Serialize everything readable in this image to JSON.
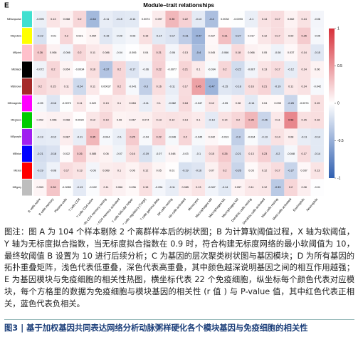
{
  "panel_label": "E",
  "chart_data": {
    "type": "heatmap",
    "title": "Module–trait relationships",
    "x": [
      "B cells naive",
      "B cells memory",
      "Plasma cells",
      "T cells CD8",
      "T cells CD4 naive",
      "T cells CD4 memory resting",
      "T cells CD4 memory activated",
      "T cells follicular helper",
      "T cells regulatory (Tregs)",
      "T cells gamma delta",
      "NK cells resting",
      "NK cells activated",
      "Monocytes",
      "Macrophages M0",
      "Macrophages M1",
      "Macrophages M2",
      "Dendritic cells resting",
      "Dendritic cells activated",
      "Mast cells resting",
      "Mast cells activated",
      "Eosinophils",
      "Neutrophils"
    ],
    "y": [
      "MEturquoise",
      "MEyellow",
      "MEpink",
      "MEblack",
      "MEbrown",
      "MEmagenta",
      "MEgreen",
      "MEpurple",
      "MEblue",
      "MEred",
      "MEgrey"
    ],
    "row_colors": [
      "#40e0d0",
      "#ffff00",
      "#ffc0cb",
      "#000000",
      "#a52a2a",
      "#ff00ff",
      "#00cc00",
      "#a020f0",
      "#0000ff",
      "#ff0000",
      "#bebebe"
    ],
    "values": [
      [
        -0.095,
        0.13,
        0.068,
        0.2,
        -0.44,
        -0.11,
        -0.15,
        -0.14,
        0.0074,
        0.097,
        0.35,
        0.22,
        -0.13,
        -0.4,
        0.0032,
        -0.0093,
        -0.1,
        0.14,
        0.17,
        0.062,
        0.14,
        -0.06
      ],
      [
        -0.19,
        -0.01,
        0.2,
        0.021,
        0.054,
        -0.15,
        -0.09,
        -0.06,
        0.15,
        -0.14,
        -0.17,
        -0.31,
        -0.47,
        0.037,
        0.31,
        -0.27,
        0.017,
        0.12,
        0.17,
        0.09,
        0.25,
        -0.05
      ],
      [
        0.26,
        0.066,
        -0.066,
        0.2,
        0.11,
        0.086,
        -0.04,
        -0.006,
        0.04,
        0.21,
        -0.06,
        0.13,
        -0.4,
        0.045,
        -0.066,
        0.18,
        0.066,
        0.05,
        -0.08,
        0.037,
        0.14,
        -0.15
      ],
      [
        -0.072,
        0.2,
        0.054,
        -0.0034,
        0.16,
        -0.37,
        0.2,
        -0.17,
        -0.06,
        0.22,
        -0.0077,
        0.21,
        0.1,
        -0.034,
        0.2,
        -0.22,
        -0.067,
        0.13,
        0.17,
        -0.12,
        0.14,
        0.06
      ],
      [
        0.2,
        0.15,
        0.11,
        -0.24,
        0.11,
        0.00037,
        0.2,
        -0.041,
        -0.3,
        0.16,
        -0.11,
        0.17,
        0.45,
        -0.47,
        -0.15,
        -0.18,
        0.16,
        0.21,
        -0.19,
        0.11,
        0.14,
        -0.042
      ],
      [
        -0.05,
        -0.16,
        -0.0073,
        0.11,
        0.022,
        0.13,
        0.1,
        0.084,
        -0.11,
        0.1,
        -0.082,
        0.18,
        -0.047,
        0.12,
        -0.05,
        0.08,
        -0.14,
        0.04,
        0.035,
        -0.26,
        -0.0074,
        0.15
      ],
      [
        0.052,
        0.066,
        0.068,
        0.0034,
        0.12,
        0.19,
        0.06,
        0.067,
        0.074,
        0.13,
        0.14,
        0.13,
        0.1,
        -0.13,
        0.14,
        0.2,
        0.35,
        -0.26,
        0.11,
        0.58,
        0.15,
        0.16
      ],
      [
        -0.13,
        -0.12,
        0.087,
        -0.11,
        0.35,
        -0.044,
        -0.1,
        0.25,
        -0.04,
        0.22,
        -0.046,
        0.2,
        -0.045,
        0.042,
        -0.013,
        -0.3,
        -0.034,
        -0.13,
        0.14,
        0.08,
        -0.11,
        -0.14
      ],
      [
        -0.21,
        -0.18,
        0.022,
        0.26,
        0.085,
        0.06,
        -0.07,
        0.16,
        -0.19,
        -0.07,
        0.048,
        -0.03,
        -0.1,
        0.15,
        0.26,
        -0.21,
        0.13,
        0.23,
        -0.2,
        -0.048,
        0.17,
        -0.14
      ],
      [
        -0.19,
        -0.08,
        0.17,
        0.13,
        -0.06,
        0.089,
        0.1,
        0.06,
        0.12,
        0.05,
        0.01,
        -0.19,
        -0.16,
        0.07,
        0.2,
        -0.26,
        0.03,
        0.12,
        0.17,
        -0.27,
        0.037,
        0.13
      ],
      [
        0.053,
        0.28,
        -0.0085,
        -0.13,
        -0.022,
        0.11,
        0.066,
        0.036,
        0.15,
        -0.054,
        -0.11,
        0.085,
        0.13,
        -0.067,
        -0.14,
        0.057,
        0.11,
        0.12,
        -0.33,
        0.2,
        0.08,
        -0.01
      ]
    ],
    "zlim": [
      -1,
      1
    ],
    "colorbar_ticks": [
      -1,
      -0.5,
      0,
      0.5,
      1
    ],
    "low_color": "#2f5fb0",
    "mid_color": "#ffffff",
    "high_color": "#d7303a"
  },
  "caption": "图注：图 A 为 104 个样本剔除 2 个离群样本后的树状图；B 为计算软阈值过程，X 轴为软阈值，Y 轴为无标度拟合指数，当无标度拟合指数在 0.9 时，符合构建无标度网络的最小软阈值为 10，最终软阈值 B 设置为 10 进行后续分析；C 为基因的层次聚类树状图与基因模块；D 为所有基因的拓扑重叠矩阵，浅色代表低重叠，深色代表高重叠，其中颜色越深说明基因之间的相互作用越强；E 为基因模块与免疫细胞的相关性热图，横坐标代表 22 个免疫细胞，纵坐标每个颜色代表对应模块，每个方格里的数据为免疫细胞与模块基因的相关性 (r 值 ) 与 P-value 值，其中红色代表正相关，蓝色代表负相关。",
  "figure_title": "图3 | 基于加权基因共同表达网络分析动脉粥样硬化各个模块基因与免疫细胞的相关性"
}
